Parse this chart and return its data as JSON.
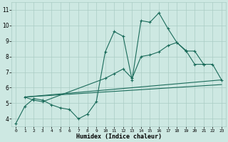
{
  "xlabel": "Humidex (Indice chaleur)",
  "xlim": [
    -0.5,
    23.5
  ],
  "ylim": [
    3.5,
    11.5
  ],
  "xticks": [
    0,
    1,
    2,
    3,
    4,
    5,
    6,
    7,
    8,
    9,
    10,
    11,
    12,
    13,
    14,
    15,
    16,
    17,
    18,
    19,
    20,
    21,
    22,
    23
  ],
  "yticks": [
    4,
    5,
    6,
    7,
    8,
    9,
    10,
    11
  ],
  "bg_color": "#cde8e2",
  "grid_color": "#aaccc4",
  "line_color": "#1a6b5a",
  "curve1_x": [
    0,
    1,
    2,
    3,
    4,
    5,
    6,
    7,
    8,
    9,
    10,
    11,
    12,
    13,
    14,
    15,
    16,
    17,
    18,
    19,
    20,
    21
  ],
  "curve1_y": [
    3.7,
    4.8,
    5.3,
    5.2,
    4.9,
    4.7,
    4.6,
    4.0,
    4.3,
    5.1,
    8.3,
    9.6,
    9.3,
    6.5,
    10.3,
    10.2,
    10.8,
    9.8,
    8.9,
    8.4,
    7.5,
    7.5
  ],
  "curve2_x": [
    1,
    2,
    3,
    10,
    11,
    12,
    13,
    14,
    15,
    16,
    17,
    18,
    19,
    20,
    21,
    22,
    23
  ],
  "curve2_y": [
    5.4,
    5.2,
    5.1,
    6.6,
    6.9,
    7.2,
    6.6,
    8.0,
    8.1,
    8.3,
    8.7,
    8.9,
    8.35,
    8.35,
    7.5,
    7.5,
    6.5
  ],
  "line1_x": [
    1,
    23
  ],
  "line1_y": [
    5.4,
    6.5
  ],
  "line2_x": [
    1,
    23
  ],
  "line2_y": [
    5.4,
    6.2
  ]
}
